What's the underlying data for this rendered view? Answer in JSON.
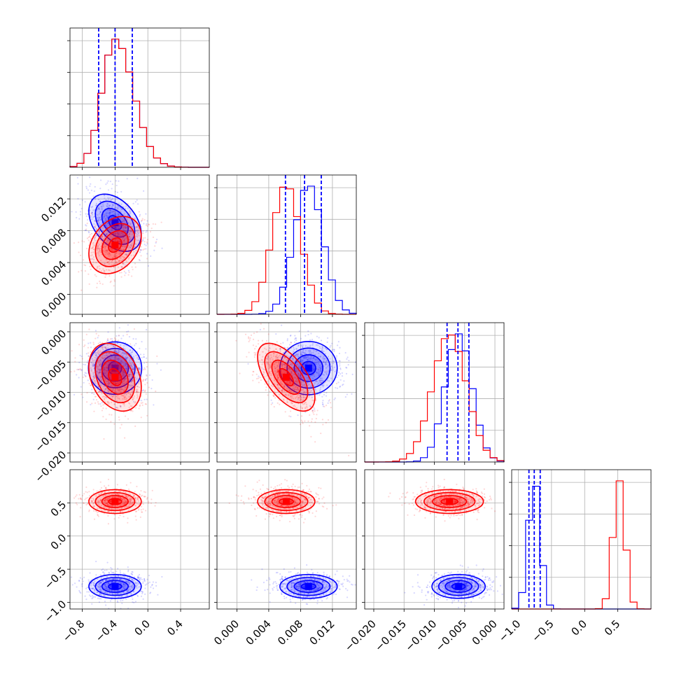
{
  "chart_data": {
    "type": "corner",
    "colors": {
      "blue": "#0000ff",
      "red": "#ff0000"
    },
    "series": [
      {
        "color": "blue",
        "mean": [
          -0.4,
          0.009,
          -0.006,
          -0.76
        ],
        "sd": [
          0.16,
          0.0018,
          0.0022,
          0.09
        ],
        "quantile_lines": [
          [
            -0.6,
            -0.4,
            -0.19
          ],
          [
            0.0061,
            0.0085,
            0.0106
          ],
          [
            -0.0079,
            -0.0061,
            -0.0043
          ],
          [
            -0.84,
            -0.76,
            -0.67
          ]
        ]
      },
      {
        "color": "red",
        "mean": [
          -0.4,
          0.0062,
          -0.0075,
          0.52
        ],
        "sd": [
          0.16,
          0.0018,
          0.0028,
          0.09
        ]
      }
    ],
    "correlations": {
      "blue": {
        "0-1": -0.4,
        "0-2": 0.0,
        "0-3": 0.0,
        "1-2": 0.0,
        "1-3": 0.0,
        "2-3": 0.0
      },
      "red": {
        "0-1": 0.3,
        "0-2": -0.3,
        "0-3": 0.0,
        "1-2": -0.6,
        "1-3": 0.0,
        "2-3": 0.0
      }
    },
    "params": [
      {
        "range": [
          -0.95,
          0.75
        ],
        "ticks": [
          -0.8,
          -0.4,
          0.0,
          0.4
        ],
        "tick_labels": [
          "−0.8",
          "−0.4",
          "0.0",
          "0.4"
        ]
      },
      {
        "range": [
          -0.0025,
          0.015
        ],
        "ticks": [
          0.0,
          0.004,
          0.008,
          0.012
        ],
        "tick_labels": [
          "0.000",
          "0.004",
          "0.008",
          "0.012"
        ]
      },
      {
        "range": [
          -0.0215,
          0.0015
        ],
        "ticks": [
          -0.02,
          -0.015,
          -0.01,
          -0.005,
          0.0
        ],
        "tick_labels": [
          "−0.020",
          "−0.015",
          "−0.010",
          "−0.005",
          "0.000"
        ]
      },
      {
        "range": [
          -1.1,
          1.0
        ],
        "ticks": [
          -1.0,
          -0.5,
          0.0,
          0.5
        ],
        "tick_labels": [
          "−1.0",
          "−0.5",
          "0.0",
          "0.5"
        ]
      }
    ],
    "grid": true,
    "title": "",
    "xlabel": "",
    "ylabel": ""
  }
}
